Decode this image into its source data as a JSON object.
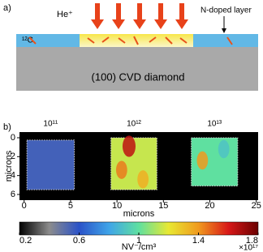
{
  "panel_a": {
    "label": "a)",
    "beam": "He⁺",
    "layer_label": "N-doped layer",
    "isotope": "¹²C",
    "substrate": "(100) CVD diamond"
  },
  "chart_data": {
    "type": "heatmap",
    "panel_label": "b)",
    "xlabel": "microns",
    "ylabel": "microns",
    "xlim": [
      -0.5,
      25.2
    ],
    "xticks": [
      0,
      5,
      10,
      15,
      20,
      25
    ],
    "ylim": [
      -0.6,
      6.6
    ],
    "yticks": [
      0,
      2,
      4,
      6
    ],
    "y_inverted": true,
    "background_value": 0.2,
    "regions": [
      {
        "label": "10¹¹",
        "x": [
          0.3,
          5.4
        ],
        "y": [
          0.25,
          5.5
        ],
        "value": 0.55
      },
      {
        "label": "10¹²",
        "x": [
          9.35,
          14.3
        ],
        "y": [
          0,
          5.5
        ],
        "value": 1.15
      },
      {
        "label": "10¹³",
        "x": [
          18,
          23
        ],
        "y": [
          0,
          5.1
        ],
        "value": 1.0
      }
    ],
    "spots": [
      {
        "x": 11.3,
        "y": 0.9,
        "r": 0.7,
        "value": 1.65
      },
      {
        "x": 10.5,
        "y": 3.4,
        "r": 0.6,
        "value": 1.45
      },
      {
        "x": 12.8,
        "y": 4.4,
        "r": 0.6,
        "value": 1.35
      },
      {
        "x": 19.2,
        "y": 2.4,
        "r": 0.6,
        "value": 1.4
      },
      {
        "x": 21.5,
        "y": 1.2,
        "r": 0.6,
        "value": 0.9
      }
    ],
    "clim": [
      0.2,
      1.8
    ],
    "cticks": [
      0.2,
      0.6,
      1,
      1.4,
      1.8
    ],
    "clabel": "NV⁻/cm³",
    "cscale": "×10¹⁷",
    "colormap": [
      "#000000",
      "#8c8c8c",
      "#2a52c8",
      "#3fa4e8",
      "#5fe0a0",
      "#e8e832",
      "#f09a1e",
      "#d81818",
      "#6a0000"
    ]
  }
}
